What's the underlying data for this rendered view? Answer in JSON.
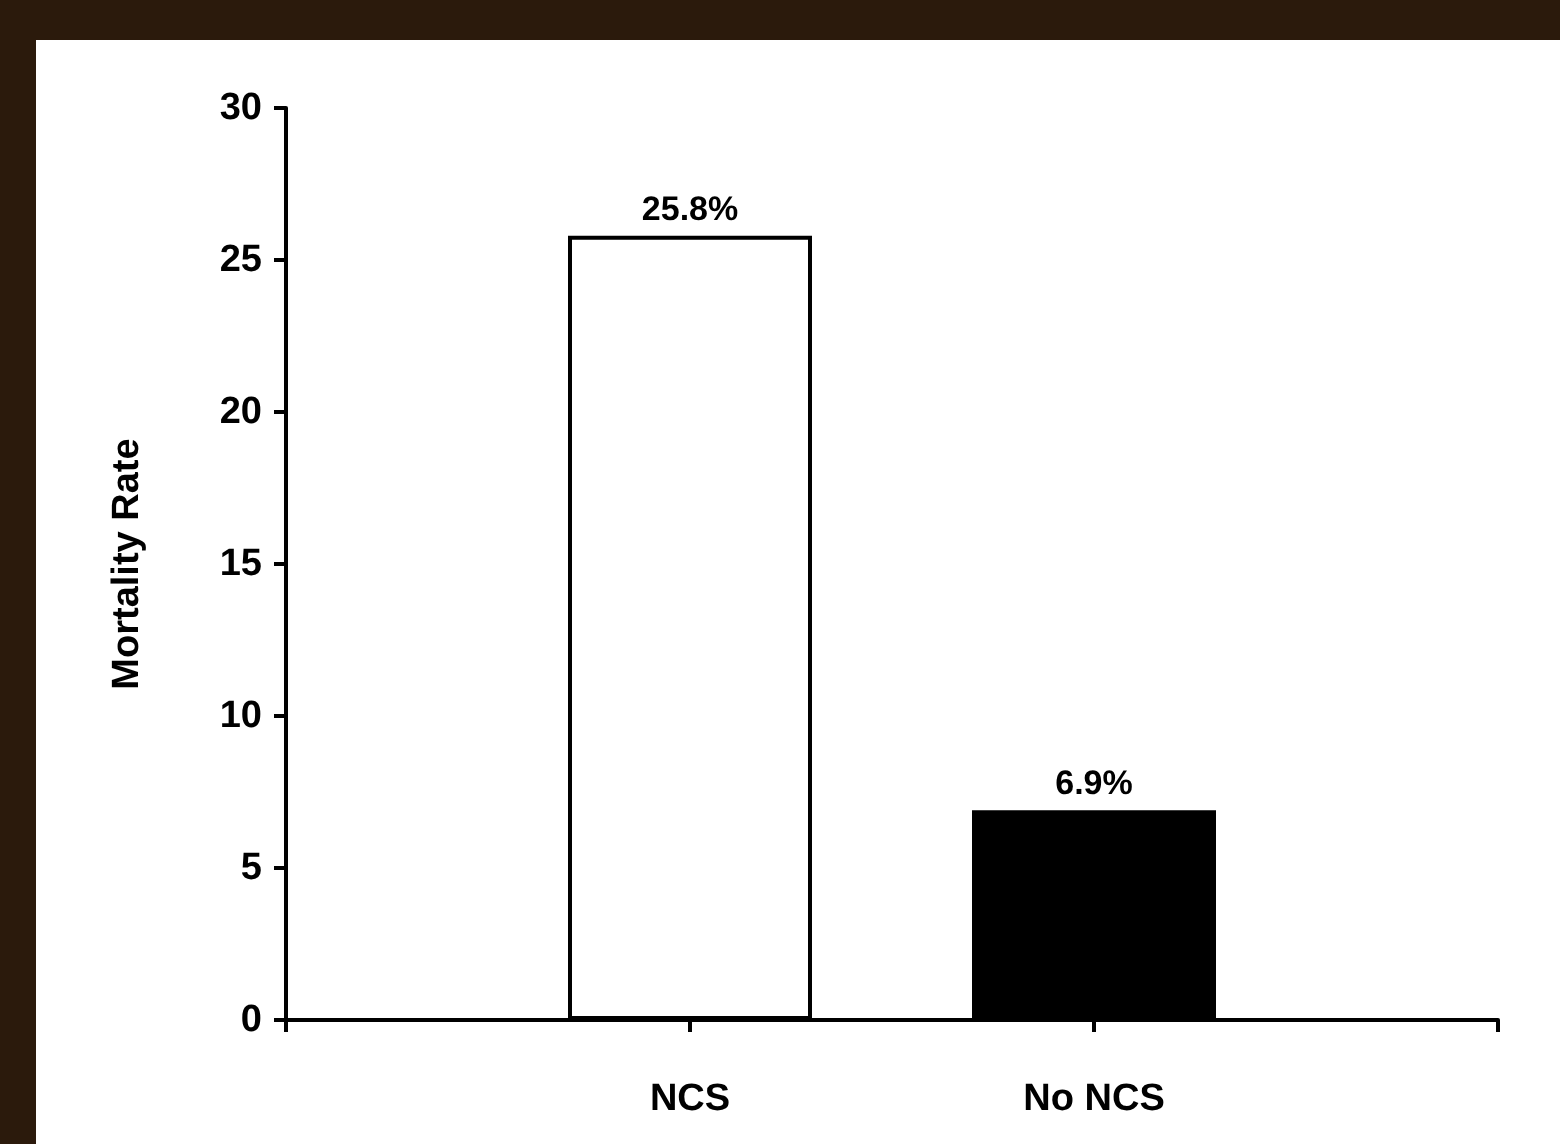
{
  "chart_data": {
    "type": "bar",
    "ylabel": "Mortality Rate",
    "categories": [
      null,
      "NCS",
      "No NCS",
      null
    ],
    "values": [
      null,
      25.8,
      6.9,
      null
    ],
    "colors": [
      "#ffffff",
      "#ffffff",
      "#000000",
      "#ffffff"
    ],
    "value_labels": [
      null,
      "25.8%",
      "6.9%",
      null
    ],
    "ylim": [
      0,
      30
    ],
    "yticks": [
      0,
      5,
      10,
      15,
      20,
      25,
      30
    ],
    "grid": false
  }
}
